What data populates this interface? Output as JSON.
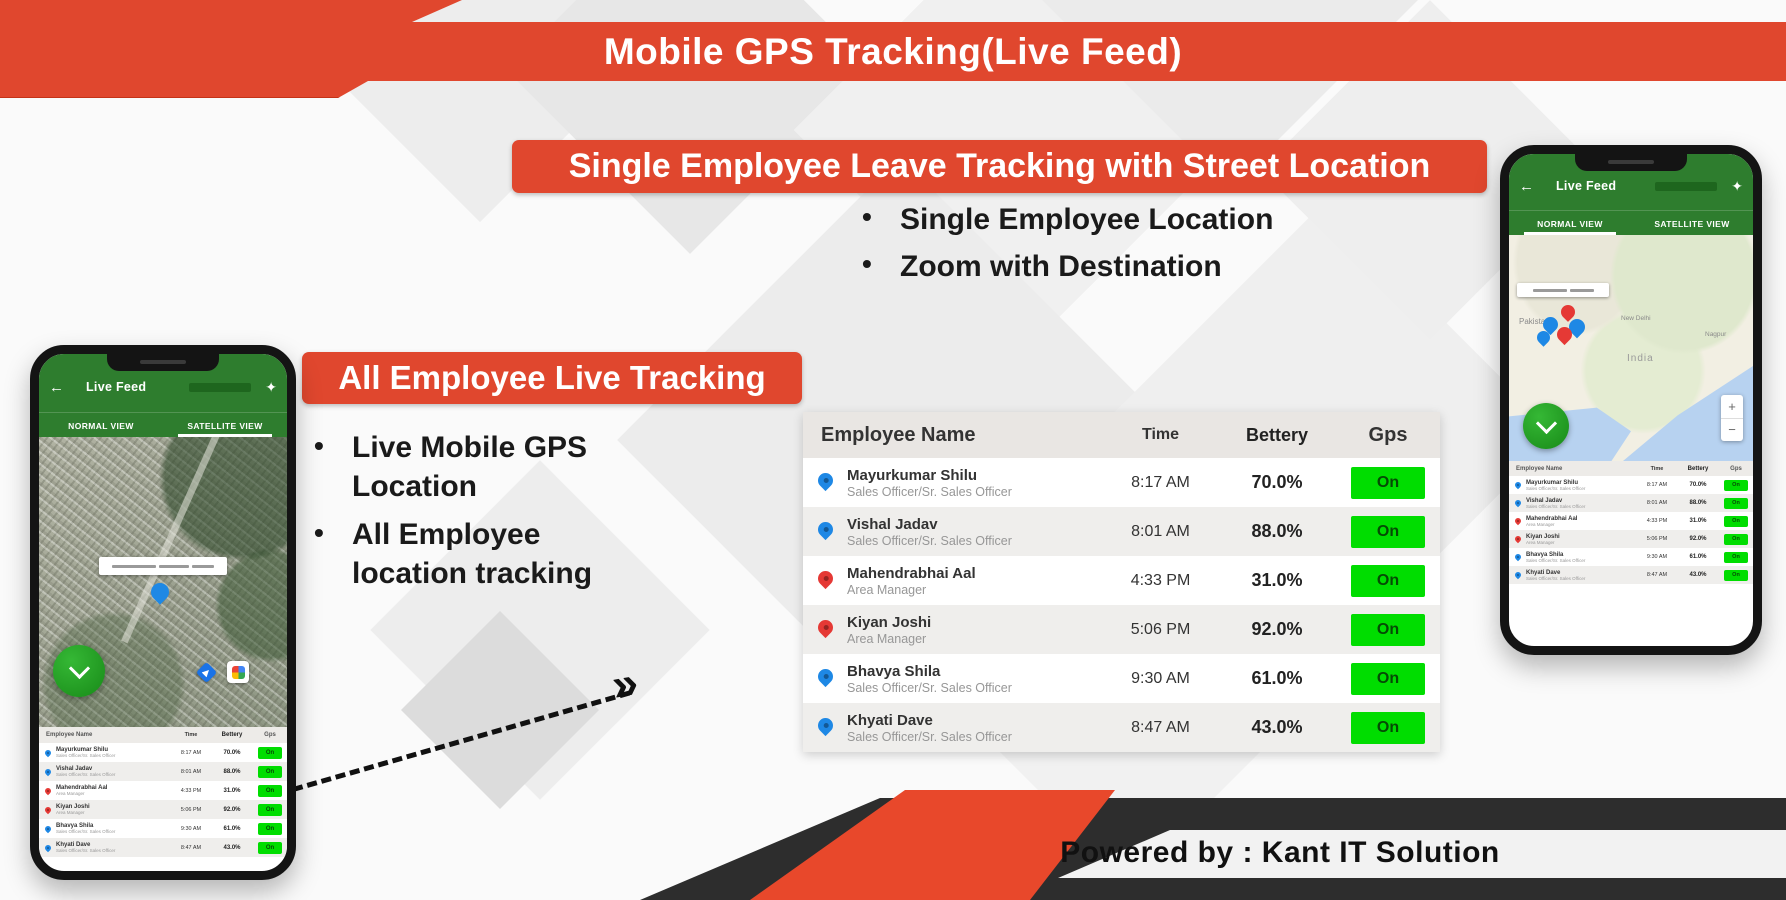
{
  "page": {
    "title": "Mobile GPS Tracking(Live Feed)"
  },
  "sections": {
    "single": {
      "banner": "Single Employee Leave Tracking with Street Location",
      "bullets": [
        "Single Employee Location",
        "Zoom with Destination"
      ]
    },
    "all": {
      "banner": "All Employee Live Tracking",
      "bullets": [
        "Live Mobile GPS Location",
        "All Employee location tracking"
      ]
    }
  },
  "table": {
    "headers": [
      "Employee Name",
      "Time",
      "Bettery",
      "Gps"
    ],
    "rows": [
      {
        "name": "Mayurkumar Shilu",
        "role": "Sales Officer/Sr. Sales Officer",
        "time": "8:17 AM",
        "battery": "70.0%",
        "gps": "On",
        "pin": "blue"
      },
      {
        "name": "Vishal Jadav",
        "role": "Sales Officer/Sr. Sales Officer",
        "time": "8:01 AM",
        "battery": "88.0%",
        "gps": "On",
        "pin": "blue"
      },
      {
        "name": "Mahendrabhai Aal",
        "role": "Area Manager",
        "time": "4:33 PM",
        "battery": "31.0%",
        "gps": "On",
        "pin": "red"
      },
      {
        "name": "Kiyan Joshi",
        "role": "Area Manager",
        "time": "5:06 PM",
        "battery": "92.0%",
        "gps": "On",
        "pin": "red"
      },
      {
        "name": "Bhavya Shila",
        "role": "Sales Officer/Sr. Sales Officer",
        "time": "9:30 AM",
        "battery": "61.0%",
        "gps": "On",
        "pin": "blue"
      },
      {
        "name": "Khyati Dave",
        "role": "Sales Officer/Sr. Sales Officer",
        "time": "8:47 AM",
        "battery": "43.0%",
        "gps": "On",
        "pin": "blue"
      }
    ]
  },
  "phone": {
    "back_icon": "←",
    "title": "Live Feed",
    "settings_icon": "✦",
    "tabs": [
      "NORMAL VIEW",
      "SATELLITE VIEW"
    ],
    "map": {
      "labels": [
        "Pakistan",
        "New Delhi",
        "India",
        "Nagpur"
      ],
      "zoom_in": "+",
      "zoom_out": "−"
    }
  },
  "arrow": {
    "glyph": "»"
  },
  "footer": {
    "powered_by": "Powered by : Kant IT Solution"
  },
  "colors": {
    "accent_red": "#E0472E",
    "phone_green": "#2E7D2E",
    "gps_on_green": "#00DD00",
    "pin_blue": "#1E88E5",
    "pin_red": "#E53935"
  }
}
